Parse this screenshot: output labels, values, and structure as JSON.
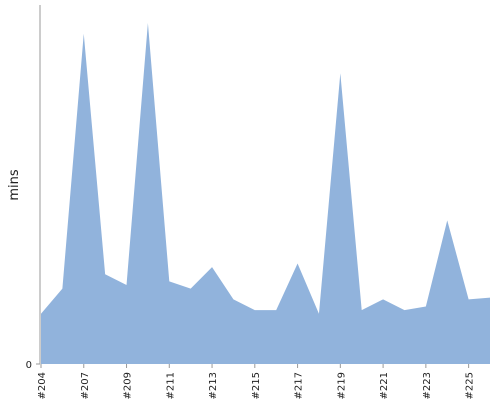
{
  "chart_data": {
    "type": "area",
    "title": "",
    "xlabel": "",
    "ylabel": "mins",
    "grid": false,
    "legend": "none",
    "area_color": "#91b3dc",
    "axis_color": "#999999",
    "ylim": [
      0,
      100
    ],
    "y_ticks": [
      {
        "value": 0,
        "label": "0"
      }
    ],
    "x_tick_labels": [
      "#204",
      "#207",
      "#209",
      "#211",
      "#213",
      "#215",
      "#217",
      "#219",
      "#221",
      "#223",
      "#225"
    ],
    "x_tick_positions": [
      0,
      2,
      4,
      6,
      8,
      10,
      12,
      14,
      16,
      18,
      20
    ],
    "series": [
      {
        "x": [
          "#204",
          "#205",
          "#207",
          "#208",
          "#209",
          "#210",
          "#211",
          "#212",
          "#213",
          "#214",
          "#215",
          "#216",
          "#217",
          "#218",
          "#219",
          "#220",
          "#221",
          "#222",
          "#223",
          "#224",
          "#225",
          "#226"
        ],
        "values": [
          14,
          21,
          92,
          25,
          22,
          95,
          23,
          21,
          27,
          18,
          15,
          15,
          28,
          14,
          81,
          15,
          18,
          15,
          16,
          40,
          18,
          18.5
        ]
      }
    ]
  }
}
